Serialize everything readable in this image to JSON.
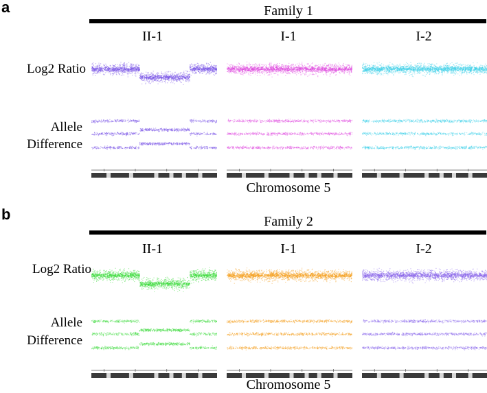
{
  "panels": [
    {
      "letter": "a",
      "family": "Family 1",
      "row_labels": {
        "log2": "Log2 Ratio",
        "allele_1": "Allele",
        "allele_2": "Difference"
      },
      "chromosome": "Chromosome 5",
      "samples": [
        {
          "name": "II-1",
          "color": "#7a55e6",
          "deletion": true
        },
        {
          "name": "I-1",
          "color": "#e04ee0",
          "deletion": false
        },
        {
          "name": "I-2",
          "color": "#3fd0e8",
          "deletion": false
        }
      ]
    },
    {
      "letter": "b",
      "family": "Family 2",
      "row_labels": {
        "log2": "Log2 Ratio",
        "allele_1": "Allele",
        "allele_2": "Difference"
      },
      "chromosome": "Chromosome 5",
      "samples": [
        {
          "name": "II-1",
          "color": "#3ddc3d",
          "deletion": true
        },
        {
          "name": "I-1",
          "color": "#f5a020",
          "deletion": false
        },
        {
          "name": "I-2",
          "color": "#8a66ea",
          "deletion": false
        }
      ]
    }
  ]
}
